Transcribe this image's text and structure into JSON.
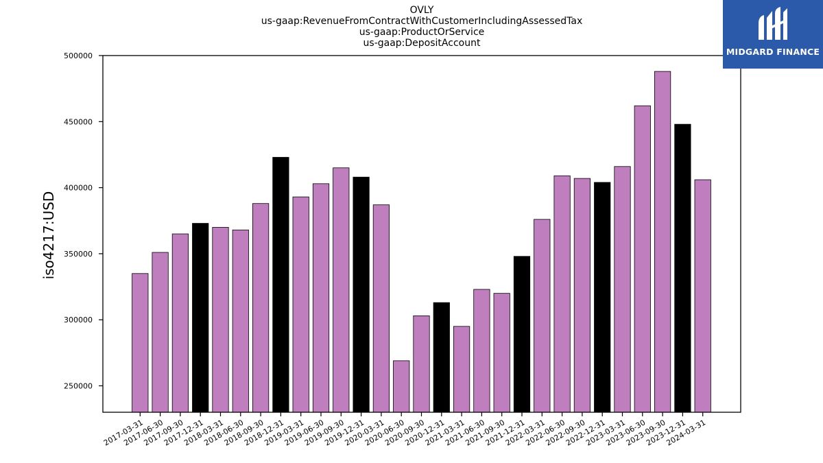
{
  "chart_data": {
    "type": "bar",
    "title_lines": [
      "OVLY",
      "us-gaap:RevenueFromContractWithCustomerIncludingAssessedTax",
      "us-gaap:ProductOrService",
      "us-gaap:DepositAccount"
    ],
    "ylabel": "iso4217:USD",
    "xlabel": "",
    "ylim": [
      230000,
      500000
    ],
    "yticks": [
      250000,
      300000,
      350000,
      400000,
      450000,
      500000
    ],
    "grid": false,
    "categories": [
      "2017-03-31",
      "2017-06-30",
      "2017-09-30",
      "2017-12-31",
      "2018-03-31",
      "2018-06-30",
      "2018-09-30",
      "2018-12-31",
      "2019-03-31",
      "2019-06-30",
      "2019-09-30",
      "2019-12-31",
      "2020-03-31",
      "2020-06-30",
      "2020-09-30",
      "2020-12-31",
      "2021-03-31",
      "2021-06-30",
      "2021-09-30",
      "2021-12-31",
      "2022-03-31",
      "2022-06-30",
      "2022-09-30",
      "2022-12-31",
      "2023-03-31",
      "2023-06-30",
      "2023-09-30",
      "2023-12-31",
      "2024-03-31"
    ],
    "values": [
      335000,
      351000,
      365000,
      373000,
      370000,
      368000,
      388000,
      423000,
      393000,
      403000,
      415000,
      408000,
      387000,
      269000,
      303000,
      313000,
      295000,
      323000,
      320000,
      348000,
      376000,
      409000,
      407000,
      404000,
      416000,
      462000,
      488000,
      448000,
      406000
    ],
    "colors": {
      "quarter": "#bf7fbf",
      "year_end": "#000000",
      "edge": "#000000"
    }
  },
  "logo": {
    "text": "MIDGARD FINANCE",
    "background": "#2b5aab"
  }
}
